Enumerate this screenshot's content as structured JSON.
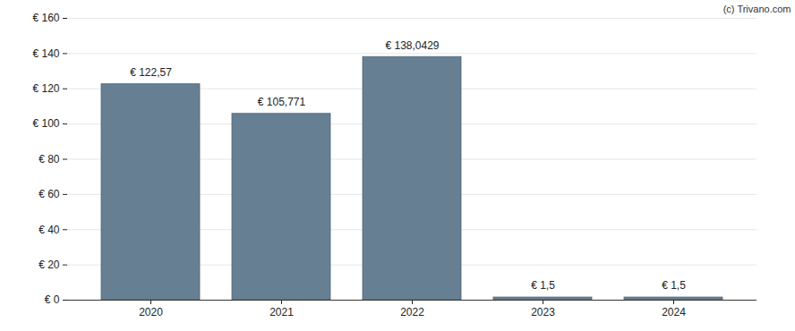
{
  "chart_data": {
    "type": "bar",
    "caption": "(c) Trivano.com",
    "categories": [
      "2020",
      "2021",
      "2022",
      "2023",
      "2024"
    ],
    "values": [
      122.57,
      105.771,
      138.0429,
      1.5,
      1.5
    ],
    "value_labels": [
      "€ 122,57",
      "€ 105,771",
      "€ 138,0429",
      "€ 1,5",
      "€ 1,5"
    ],
    "data_labels": true,
    "color": "#667f93",
    "ylim": [
      0,
      160
    ],
    "yticks": [
      {
        "value": 0,
        "label": "€ 0"
      },
      {
        "value": 20,
        "label": "€ 20"
      },
      {
        "value": 40,
        "label": "€ 40"
      },
      {
        "value": 60,
        "label": "€ 60"
      },
      {
        "value": 80,
        "label": "€ 80"
      },
      {
        "value": 100,
        "label": "€ 100"
      },
      {
        "value": 120,
        "label": "€ 120"
      },
      {
        "value": 140,
        "label": "€ 140"
      },
      {
        "value": 160,
        "label": "€ 160"
      }
    ],
    "grid": true
  }
}
